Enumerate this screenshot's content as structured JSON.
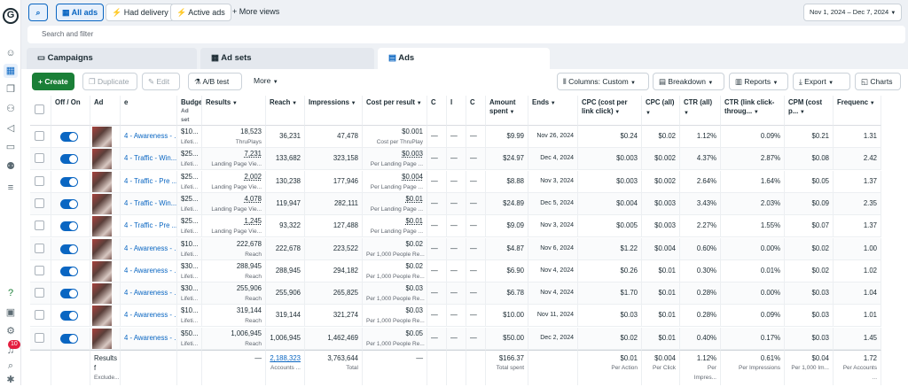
{
  "sidebar": {
    "logo": "G",
    "badge": "10"
  },
  "topbar": {
    "all_ads": "All ads",
    "had_delivery": "Had delivery",
    "active_ads": "Active ads",
    "more_views": "More views",
    "date_range": "Nov 1, 2024 – Dec 7, 2024"
  },
  "search": {
    "placeholder": "Search and filter"
  },
  "tabs": {
    "campaigns": "Campaigns",
    "ad_sets": "Ad sets",
    "ads": "Ads"
  },
  "toolbar": {
    "create": "Create",
    "duplicate": "Duplicate",
    "edit": "Edit",
    "ab_test": "A/B test",
    "more": "More",
    "columns": "Columns: Custom",
    "breakdown": "Breakdown",
    "reports": "Reports",
    "export": "Export",
    "charts": "Charts"
  },
  "headers": {
    "offon": "Off / On",
    "ad": "Ad",
    "name": "e",
    "budget": "Budge",
    "budget_sub": "Ad set",
    "results": "Results",
    "reach": "Reach",
    "impressions": "Impressions",
    "cost_per": "Cost per result",
    "c1": "C",
    "c2": "I",
    "c3": "C",
    "amount": "Amount spent",
    "ends": "Ends",
    "cpc_link": "CPC (cost per link click)",
    "cpc_all": "CPC (all)",
    "ctr_all": "CTR (all)",
    "ctr_link": "CTR (link click-throug...",
    "cpm": "CPM (cost p...",
    "freq": "Frequenc"
  },
  "rows": [
    {
      "name": "4 - Awareness - ...",
      "budget": "$10...",
      "budget_sub": "Lifeti...",
      "results": "18,523",
      "results_sub": "ThruPlays",
      "results_u": false,
      "reach": "36,231",
      "impr": "47,478",
      "cpr": "$0.001",
      "cpr_sub": "Cost per ThruPlay",
      "cpr_u": false,
      "dash1": "—",
      "dash2": "—",
      "dash3": "—",
      "amount": "$9.99",
      "ends": "Nov 26, 2024",
      "cpc_link": "$0.24",
      "cpc_all": "$0.02",
      "ctr_all": "1.12%",
      "ctr_link": "0.09%",
      "cpm": "$0.21",
      "freq": "1.31"
    },
    {
      "name": "4 - Traffic - Win...",
      "budget": "$25...",
      "budget_sub": "Lifeti...",
      "results": "7,231",
      "results_sub": "Landing Page Vie...",
      "results_u": true,
      "reach": "133,682",
      "impr": "323,158",
      "cpr": "$0.003",
      "cpr_sub": "Per Landing Page ...",
      "cpr_u": true,
      "dash1": "—",
      "dash2": "—",
      "dash3": "—",
      "amount": "$24.97",
      "ends": "Dec 4, 2024",
      "cpc_link": "$0.003",
      "cpc_all": "$0.002",
      "ctr_all": "4.37%",
      "ctr_link": "2.87%",
      "cpm": "$0.08",
      "freq": "2.42"
    },
    {
      "name": "4 - Traffic - Pre ...",
      "budget": "$25...",
      "budget_sub": "Lifeti...",
      "results": "2,002",
      "results_sub": "Landing Page Vie...",
      "results_u": true,
      "reach": "130,238",
      "impr": "177,946",
      "cpr": "$0.004",
      "cpr_sub": "Per Landing Page ...",
      "cpr_u": true,
      "dash1": "—",
      "dash2": "—",
      "dash3": "—",
      "amount": "$8.88",
      "ends": "Nov 3, 2024",
      "cpc_link": "$0.003",
      "cpc_all": "$0.002",
      "ctr_all": "2.64%",
      "ctr_link": "1.64%",
      "cpm": "$0.05",
      "freq": "1.37"
    },
    {
      "name": "4 - Traffic - Win...",
      "budget": "$25...",
      "budget_sub": "Lifeti...",
      "results": "4,078",
      "results_sub": "Landing Page Vie...",
      "results_u": true,
      "reach": "119,947",
      "impr": "282,111",
      "cpr": "$0.01",
      "cpr_sub": "Per Landing Page ...",
      "cpr_u": true,
      "dash1": "—",
      "dash2": "—",
      "dash3": "—",
      "amount": "$24.89",
      "ends": "Dec 5, 2024",
      "cpc_link": "$0.004",
      "cpc_all": "$0.003",
      "ctr_all": "3.43%",
      "ctr_link": "2.03%",
      "cpm": "$0.09",
      "freq": "2.35"
    },
    {
      "name": "4 - Traffic - Pre ...",
      "budget": "$25...",
      "budget_sub": "Lifeti...",
      "results": "1,245",
      "results_sub": "Landing Page Vie...",
      "results_u": true,
      "reach": "93,322",
      "impr": "127,488",
      "cpr": "$0.01",
      "cpr_sub": "Per Landing Page ...",
      "cpr_u": true,
      "dash1": "—",
      "dash2": "—",
      "dash3": "—",
      "amount": "$9.09",
      "ends": "Nov 3, 2024",
      "cpc_link": "$0.005",
      "cpc_all": "$0.003",
      "ctr_all": "2.27%",
      "ctr_link": "1.55%",
      "cpm": "$0.07",
      "freq": "1.37"
    },
    {
      "name": "4 - Awareness - ...",
      "budget": "$10...",
      "budget_sub": "Lifeti...",
      "results": "222,678",
      "results_sub": "Reach",
      "results_u": false,
      "reach": "222,678",
      "impr": "223,522",
      "cpr": "$0.02",
      "cpr_sub": "Per 1,000 People Re...",
      "cpr_u": false,
      "dash1": "—",
      "dash2": "—",
      "dash3": "—",
      "amount": "$4.87",
      "ends": "Nov 6, 2024",
      "cpc_link": "$1.22",
      "cpc_all": "$0.004",
      "ctr_all": "0.60%",
      "ctr_link": "0.00%",
      "cpm": "$0.02",
      "freq": "1.00"
    },
    {
      "name": "4 - Awareness - ...",
      "budget": "$30...",
      "budget_sub": "Lifeti...",
      "results": "288,945",
      "results_sub": "Reach",
      "results_u": false,
      "reach": "288,945",
      "impr": "294,182",
      "cpr": "$0.02",
      "cpr_sub": "Per 1,000 People Re...",
      "cpr_u": false,
      "dash1": "—",
      "dash2": "—",
      "dash3": "—",
      "amount": "$6.90",
      "ends": "Nov 4, 2024",
      "cpc_link": "$0.26",
      "cpc_all": "$0.01",
      "ctr_all": "0.30%",
      "ctr_link": "0.01%",
      "cpm": "$0.02",
      "freq": "1.02"
    },
    {
      "name": "4 - Awareness - ...",
      "budget": "$30...",
      "budget_sub": "Lifeti...",
      "results": "255,906",
      "results_sub": "Reach",
      "results_u": false,
      "reach": "255,906",
      "impr": "265,825",
      "cpr": "$0.03",
      "cpr_sub": "Per 1,000 People Re...",
      "cpr_u": false,
      "dash1": "—",
      "dash2": "—",
      "dash3": "—",
      "amount": "$6.78",
      "ends": "Nov 4, 2024",
      "cpc_link": "$1.70",
      "cpc_all": "$0.01",
      "ctr_all": "0.28%",
      "ctr_link": "0.00%",
      "cpm": "$0.03",
      "freq": "1.04"
    },
    {
      "name": "4 - Awareness - ...",
      "budget": "$10...",
      "budget_sub": "Lifeti...",
      "results": "319,144",
      "results_sub": "Reach",
      "results_u": false,
      "reach": "319,144",
      "impr": "321,274",
      "cpr": "$0.03",
      "cpr_sub": "Per 1,000 People Re...",
      "cpr_u": false,
      "dash1": "—",
      "dash2": "—",
      "dash3": "—",
      "amount": "$10.00",
      "ends": "Nov 11, 2024",
      "cpc_link": "$0.03",
      "cpc_all": "$0.01",
      "ctr_all": "0.28%",
      "ctr_link": "0.09%",
      "cpm": "$0.03",
      "freq": "1.01"
    },
    {
      "name": "4 - Awareness - ...",
      "budget": "$50...",
      "budget_sub": "Lifeti...",
      "results": "1,006,945",
      "results_sub": "Reach",
      "results_u": false,
      "reach": "1,006,945",
      "impr": "1,462,469",
      "cpr": "$0.05",
      "cpr_sub": "Per 1,000 People Re...",
      "cpr_u": false,
      "dash1": "—",
      "dash2": "—",
      "dash3": "—",
      "amount": "$50.00",
      "ends": "Dec 2, 2024",
      "cpc_link": "$0.02",
      "cpc_all": "$0.01",
      "ctr_all": "0.40%",
      "ctr_link": "0.17%",
      "cpm": "$0.03",
      "freq": "1.45"
    }
  ],
  "totals": {
    "label": "Results f",
    "label_sub": "Exclude...",
    "results": "—",
    "reach": "2,188,323",
    "reach_sub": "Accounts ...",
    "impr": "3,763,644",
    "impr_sub": "Total",
    "cpr": "—",
    "amount": "$166.37",
    "amount_sub": "Total spent",
    "cpc_link": "$0.01",
    "cpc_link_sub": "Per Action",
    "cpc_all": "$0.004",
    "cpc_all_sub": "Per Click",
    "ctr_all": "1.12%",
    "ctr_all_sub": "Per Impres...",
    "ctr_link": "0.61%",
    "ctr_link_sub": "Per Impressions",
    "cpm": "$0.04",
    "cpm_sub": "Per 1,000 Im...",
    "freq": "1.72",
    "freq_sub": "Per Accounts ..."
  }
}
